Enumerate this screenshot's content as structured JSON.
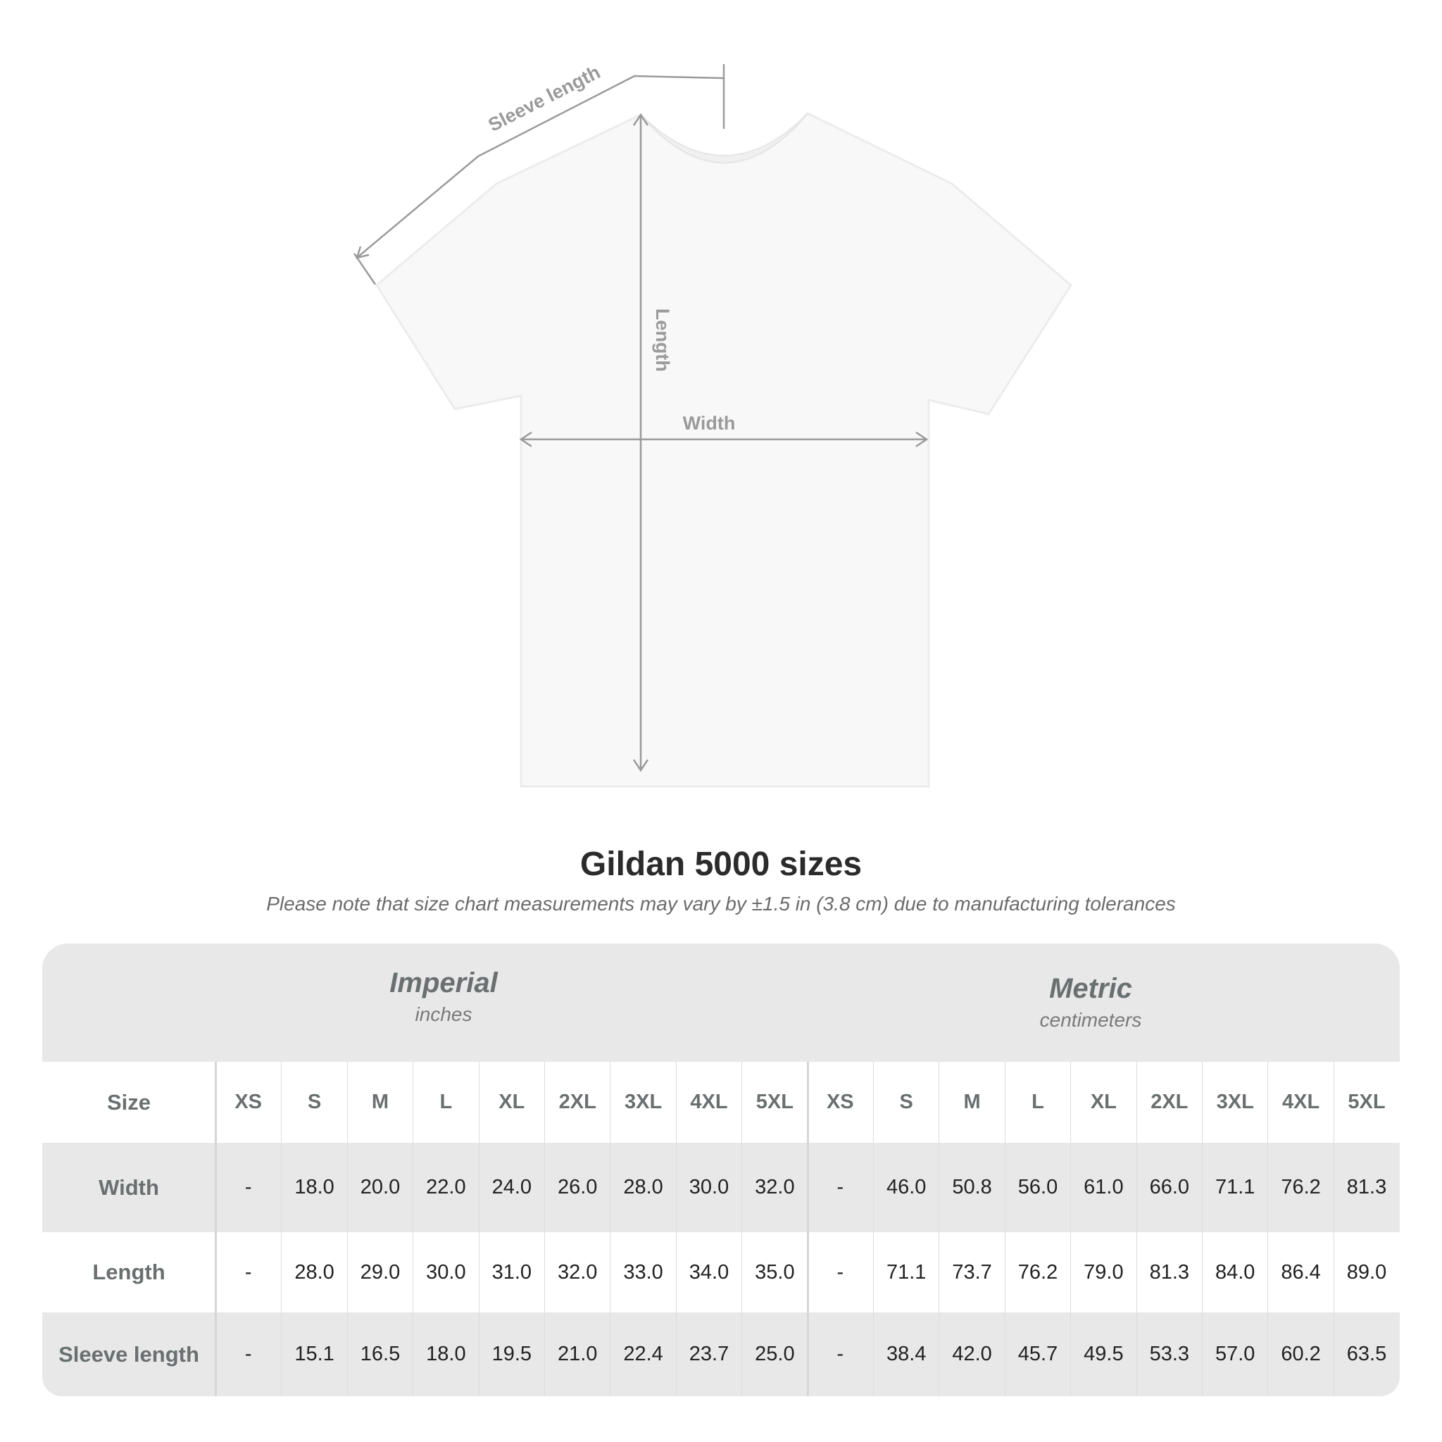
{
  "diagram": {
    "labels": {
      "sleeve": "Sleeve length",
      "length": "Length",
      "width": "Width"
    }
  },
  "title": "Gildan 5000 sizes",
  "subtitle": "Please note that size chart measurements may vary by ±1.5 in (3.8 cm) due to manufacturing tolerances",
  "imperial": {
    "name": "Imperial",
    "unit": "inches"
  },
  "metric": {
    "name": "Metric",
    "unit": "centimeters"
  },
  "size_label": "Size",
  "sizes": [
    "XS",
    "S",
    "M",
    "L",
    "XL",
    "2XL",
    "3XL",
    "4XL",
    "5XL"
  ],
  "rows": [
    {
      "label": "Width",
      "imperial": [
        "-",
        "18.0",
        "20.0",
        "22.0",
        "24.0",
        "26.0",
        "28.0",
        "30.0",
        "32.0"
      ],
      "metric": [
        "-",
        "46.0",
        "50.8",
        "56.0",
        "61.0",
        "66.0",
        "71.1",
        "76.2",
        "81.3"
      ]
    },
    {
      "label": "Length",
      "imperial": [
        "-",
        "28.0",
        "29.0",
        "30.0",
        "31.0",
        "32.0",
        "33.0",
        "34.0",
        "35.0"
      ],
      "metric": [
        "-",
        "71.1",
        "73.7",
        "76.2",
        "79.0",
        "81.3",
        "84.0",
        "86.4",
        "89.0"
      ]
    },
    {
      "label": "Sleeve length",
      "imperial": [
        "-",
        "15.1",
        "16.5",
        "18.0",
        "19.5",
        "21.0",
        "22.4",
        "23.7",
        "25.0"
      ],
      "metric": [
        "-",
        "38.4",
        "42.0",
        "45.7",
        "49.5",
        "53.3",
        "57.0",
        "60.2",
        "63.5"
      ]
    }
  ],
  "colors": {
    "band": "#e8e8e8",
    "header_text": "#6a6f70",
    "measure_lines": "#9a9a9a"
  }
}
